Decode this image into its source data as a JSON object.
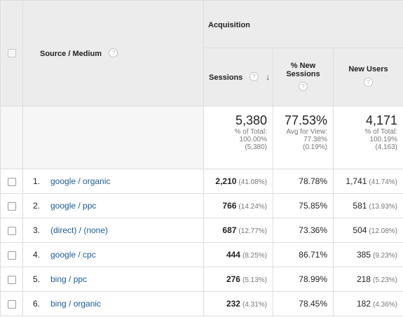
{
  "header": {
    "dimension_label": "Source / Medium",
    "group_label": "Acquisition",
    "columns": {
      "sessions": "Sessions",
      "new_sessions_line1": "% New",
      "new_sessions_line2": "Sessions",
      "new_users": "New Users"
    },
    "sort_indicator": "arrow-down-icon"
  },
  "totals": {
    "sessions": {
      "value": "5,380",
      "line1": "% of Total:",
      "line2": "100.00%",
      "line3": "(5,380)"
    },
    "new_sessions": {
      "value": "77.53%",
      "line1": "Avg for View:",
      "line2": "77.38%",
      "line3": "(0.19%)"
    },
    "new_users": {
      "value": "4,171",
      "line1": "% of Total:",
      "line2": "100.19%",
      "line3": "(4,163)"
    }
  },
  "rows": [
    {
      "index": "1.",
      "source": "google / organic",
      "sessions": "2,210",
      "sessions_pct": "(41.08%)",
      "new_sessions": "78.78%",
      "new_users": "1,741",
      "new_users_pct": "(41.74%)"
    },
    {
      "index": "2.",
      "source": "google / ppc",
      "sessions": "766",
      "sessions_pct": "(14.24%)",
      "new_sessions": "75.85%",
      "new_users": "581",
      "new_users_pct": "(13.93%)"
    },
    {
      "index": "3.",
      "source": "(direct) / (none)",
      "sessions": "687",
      "sessions_pct": "(12.77%)",
      "new_sessions": "73.36%",
      "new_users": "504",
      "new_users_pct": "(12.08%)"
    },
    {
      "index": "4.",
      "source": "google / cpc",
      "sessions": "444",
      "sessions_pct": "(8.25%)",
      "new_sessions": "86.71%",
      "new_users": "385",
      "new_users_pct": "(9.23%)"
    },
    {
      "index": "5.",
      "source": "bing / ppc",
      "sessions": "276",
      "sessions_pct": "(5.13%)",
      "new_sessions": "78.99%",
      "new_users": "218",
      "new_users_pct": "(5.23%)"
    },
    {
      "index": "6.",
      "source": "bing / organic",
      "sessions": "232",
      "sessions_pct": "(4.31%)",
      "new_sessions": "78.45%",
      "new_users": "182",
      "new_users_pct": "(4.36%)"
    }
  ],
  "help_glyph": "?",
  "sort_glyph": "↓"
}
